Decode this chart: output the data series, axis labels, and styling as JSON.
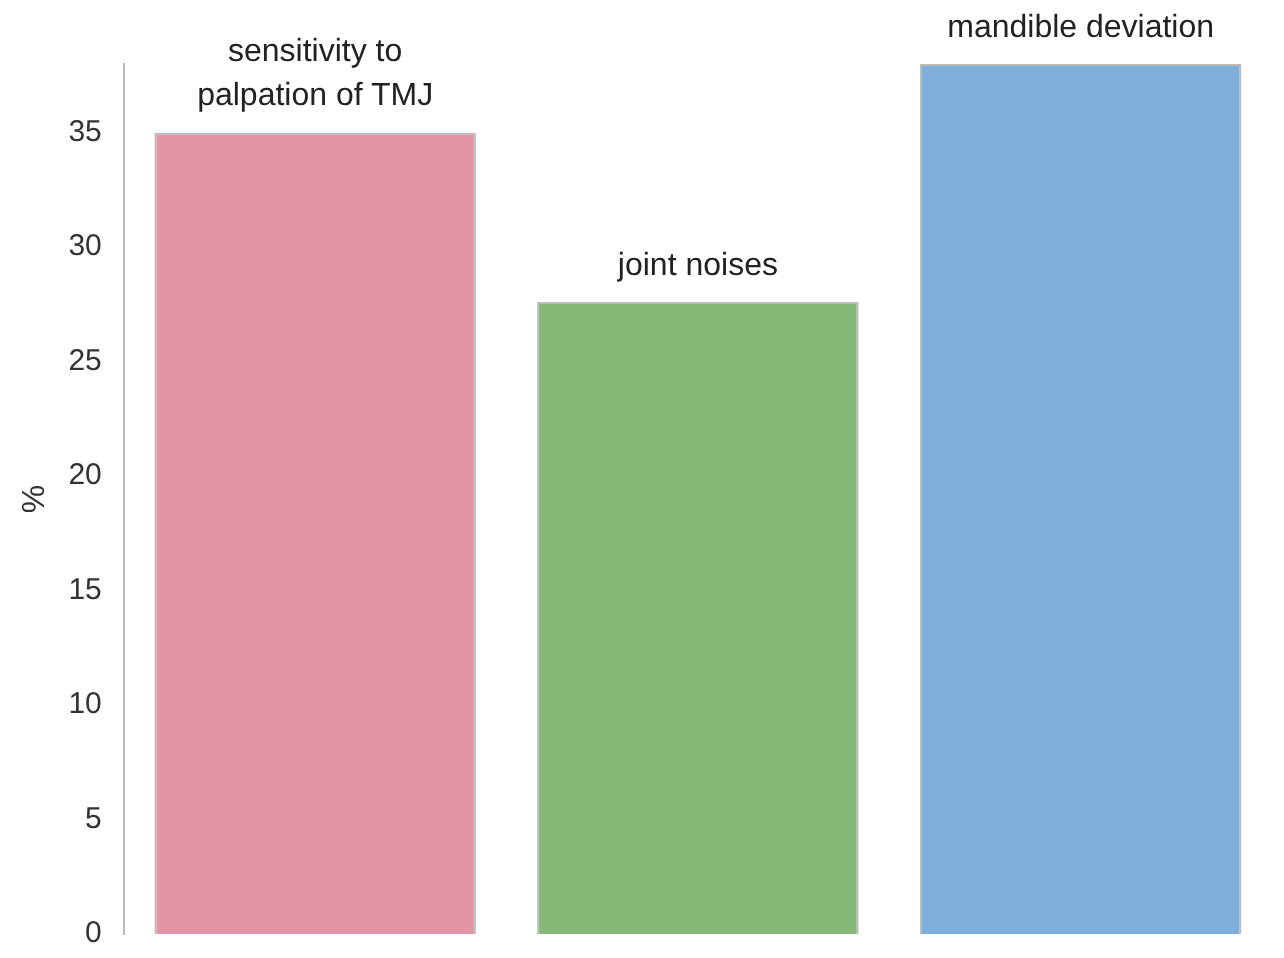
{
  "chart_data": {
    "type": "bar",
    "ylabel": "%",
    "categories": [
      "sensitivity to palpation of TMJ",
      "joint noises",
      "mandible deviation"
    ],
    "values": [
      35,
      27.6,
      38
    ],
    "colors": [
      "#e295a7",
      "#86b877",
      "#7eaedc"
    ],
    "ylim": [
      0,
      38
    ],
    "yticks": [
      0,
      5,
      10,
      15,
      20,
      25,
      30,
      35
    ],
    "grid": false,
    "legend": false
  }
}
